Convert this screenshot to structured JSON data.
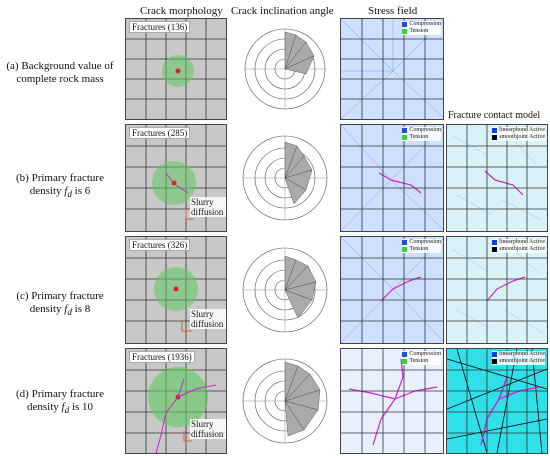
{
  "headers": {
    "morphology": "Crack morphology",
    "inclination": "Crack inclination angle",
    "stress": "Stress field",
    "contact": "Fracture contact model"
  },
  "legends": {
    "compression": "Compression",
    "tension": "Tension",
    "linearpbond": "linearpbond Active",
    "smoothjoint": "smoothjoint Active"
  },
  "slurry_label": "Slurry diffusion",
  "rows": [
    {
      "label": "(a) Background value of complete rock mass",
      "fractures": "Fractures (136)"
    },
    {
      "label": "(b) Primary fracture density f_d is 6",
      "fractures": "Fractures (285)"
    },
    {
      "label": "(c) Primary fracture density f_d is 8",
      "fractures": "Fractures (326)"
    },
    {
      "label": "(d) Primary fracture density f_d is 10",
      "fractures": "Fractures (1936)"
    }
  ],
  "colors": {
    "compression": "#1f4fd8",
    "tension": "#38d23a",
    "fracture": "#d020d0",
    "linearpbond": "#1a3fd0",
    "smoothjoint": "#000000"
  }
}
